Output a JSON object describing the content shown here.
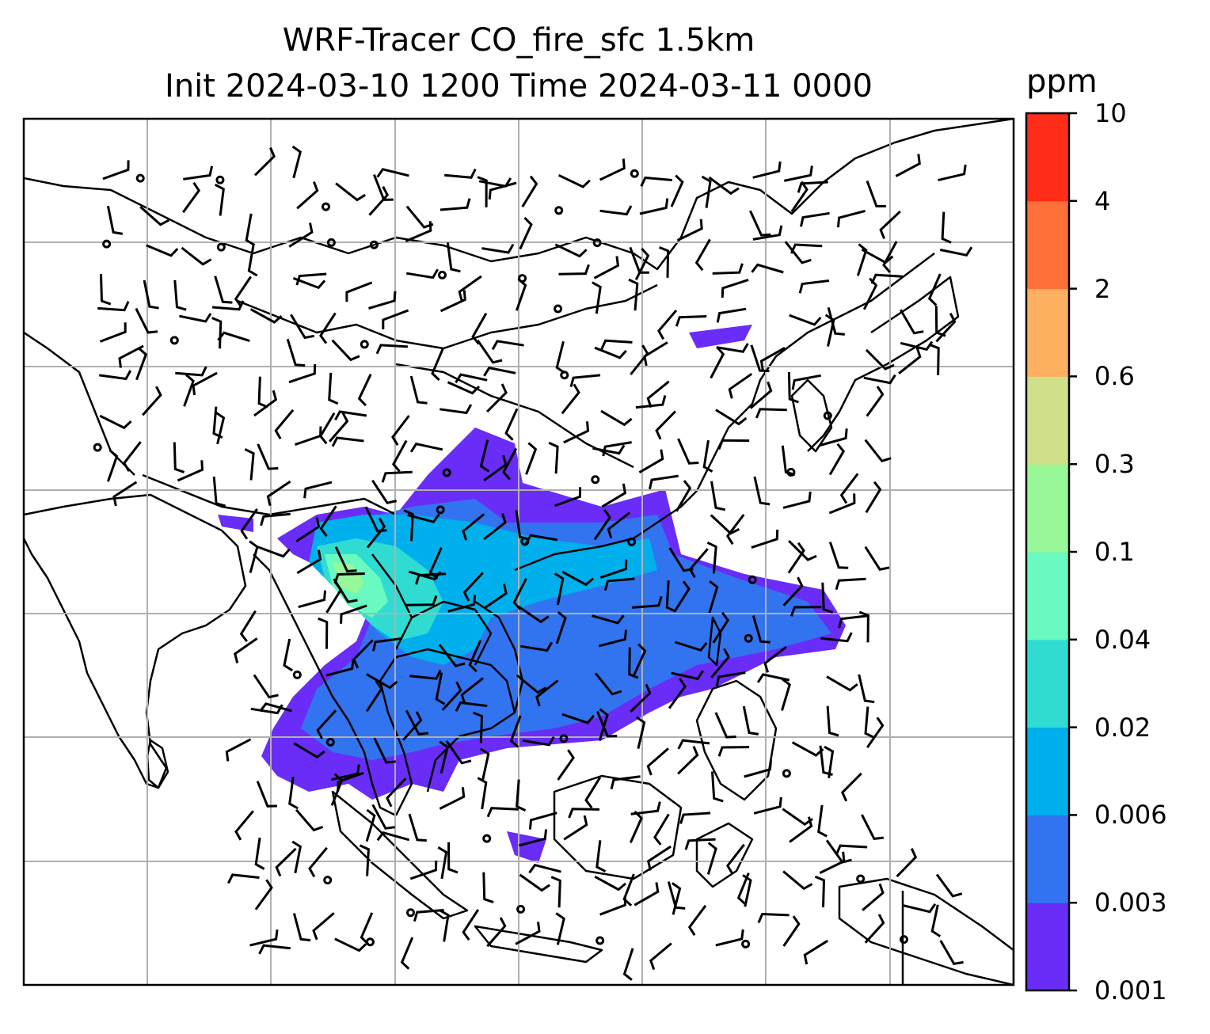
{
  "title_line1": "WRF-Tracer CO_fire_sfc 1.5km",
  "title_line2": "Init 2024-03-10 1200 Time 2024-03-11 0000",
  "colorbar": {
    "unit": "ppm",
    "ticks": [
      "0.001",
      "0.003",
      "0.006",
      "0.02",
      "0.04",
      "0.1",
      "0.3",
      "0.6",
      "2",
      "4",
      "10"
    ],
    "colors": [
      "#6a2cf7",
      "#3274f0",
      "#00b0ec",
      "#30dcd2",
      "#68fac0",
      "#98f898",
      "#d0e088",
      "#fcb060",
      "#ff7038",
      "#ff2c18"
    ]
  }
}
